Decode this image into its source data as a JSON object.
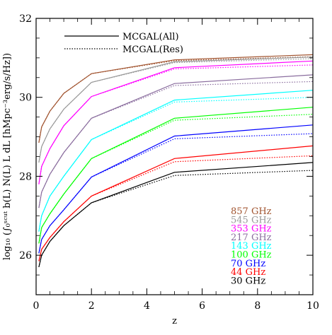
{
  "chart_data": {
    "type": "line",
    "xlabel": "z",
    "ylabel": "log₁₀ (∫₀ˢᶜᵘᵗ b(L) N(L) L dL [hMpc⁻³erg/s/Hz])",
    "xlim": [
      0,
      10
    ],
    "ylim": [
      25,
      32
    ],
    "xticks": [
      "0",
      "2",
      "4",
      "6",
      "8",
      "10"
    ],
    "yticks": [
      "26",
      "28",
      "30",
      "32"
    ],
    "legend": [
      {
        "label": "MCGAL(All)",
        "style": "solid"
      },
      {
        "label": "MCGAL(Res)",
        "style": "dotted"
      }
    ],
    "x": [
      0.1,
      0.2,
      0.5,
      1,
      2,
      5,
      10
    ],
    "series": [
      {
        "name": "857 GHz",
        "color": "#a0522d",
        "all": [
          28.85,
          29.25,
          29.65,
          30.1,
          30.6,
          30.95,
          31.08
        ],
        "res": [
          28.85,
          29.25,
          29.65,
          30.1,
          30.6,
          30.93,
          31.03
        ]
      },
      {
        "name": "545 GHz",
        "color": "#999999",
        "all": [
          28.35,
          28.75,
          29.2,
          29.7,
          30.38,
          30.9,
          31.02
        ],
        "res": [
          28.35,
          28.75,
          29.2,
          29.7,
          30.38,
          30.88,
          30.98
        ]
      },
      {
        "name": "353 GHz",
        "color": "#ff00ff",
        "all": [
          27.8,
          28.25,
          28.7,
          29.28,
          30.02,
          30.75,
          30.92
        ],
        "res": [
          27.8,
          28.25,
          28.7,
          29.28,
          30.02,
          30.72,
          30.82
        ]
      },
      {
        "name": "217 GHz",
        "color": "#8a6d9e",
        "all": [
          27.2,
          27.6,
          28.05,
          28.6,
          29.47,
          30.35,
          30.57
        ],
        "res": [
          27.2,
          27.6,
          28.05,
          28.6,
          29.47,
          30.3,
          30.4
        ]
      },
      {
        "name": "143 GHz",
        "color": "#00ffff",
        "all": [
          26.6,
          27.0,
          27.5,
          28.0,
          28.93,
          29.93,
          30.18
        ],
        "res": [
          26.6,
          27.0,
          27.5,
          28.0,
          28.93,
          29.88,
          30.0
        ]
      },
      {
        "name": "100 GHz",
        "color": "#00ff00",
        "all": [
          26.3,
          26.7,
          27.05,
          27.55,
          28.45,
          29.47,
          29.75
        ],
        "res": [
          26.3,
          26.7,
          27.05,
          27.55,
          28.45,
          29.42,
          29.57
        ]
      },
      {
        "name": "70 GHz",
        "color": "#0000ff",
        "all": [
          26.05,
          26.4,
          26.75,
          27.15,
          27.98,
          29.02,
          29.3
        ],
        "res": [
          26.05,
          26.4,
          26.75,
          27.15,
          27.98,
          28.95,
          29.08
        ]
      },
      {
        "name": "44 GHz",
        "color": "#ff0000",
        "all": [
          25.85,
          26.15,
          26.45,
          26.85,
          27.5,
          28.45,
          28.77
        ],
        "res": [
          25.85,
          26.15,
          26.45,
          26.85,
          27.5,
          28.37,
          28.52
        ]
      },
      {
        "name": "30 GHz",
        "color": "#000000",
        "all": [
          25.7,
          26.0,
          26.35,
          26.75,
          27.33,
          28.1,
          28.35
        ],
        "res": [
          25.7,
          26.0,
          26.35,
          26.75,
          27.33,
          28.02,
          28.15
        ]
      }
    ]
  }
}
